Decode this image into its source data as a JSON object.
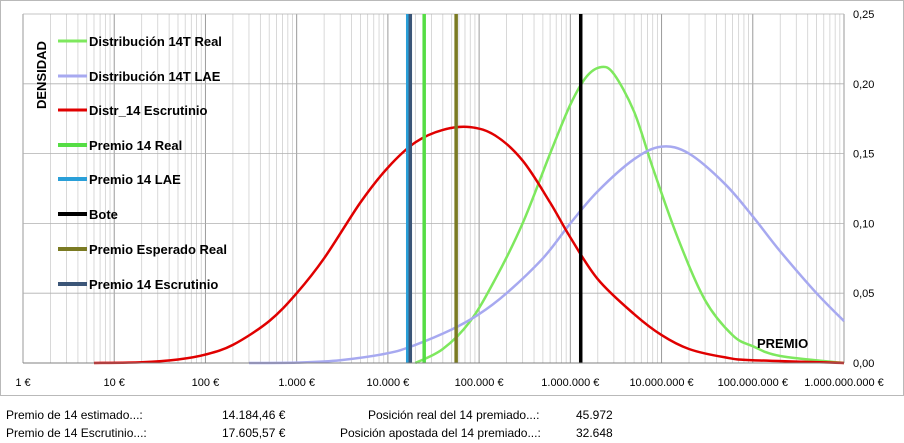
{
  "chart_data": {
    "type": "line",
    "xscale": "log",
    "xlim": [
      1,
      1000000000
    ],
    "ylim": [
      0,
      0.25
    ],
    "x_ticks": [
      "1 €",
      "10 €",
      "100 €",
      "1.000 €",
      "10.000 €",
      "100.000 €",
      "1.000.000 €",
      "10.000.000 €",
      "100.000.000 €",
      "1.000.000.000 €"
    ],
    "y_ticks": [
      "0,00",
      "0,05",
      "0,10",
      "0,15",
      "0,20",
      "0,25"
    ],
    "ylabel": "DENSIDAD",
    "xlabel": "PREMIO",
    "grid": true,
    "legend_position": "top-left",
    "series": [
      {
        "name": "Distribución 14T Real",
        "kind": "curve",
        "color": "#7ee85e",
        "x": [
          20000,
          40000,
          80000,
          150000,
          300000,
          600000,
          1000000,
          1500000,
          2200000,
          3000000,
          5000000,
          8000000,
          15000000,
          30000000,
          60000000,
          100000000,
          200000000,
          1000000000
        ],
        "y": [
          0.0,
          0.01,
          0.03,
          0.06,
          0.1,
          0.15,
          0.185,
          0.205,
          0.212,
          0.207,
          0.18,
          0.14,
          0.09,
          0.045,
          0.02,
          0.012,
          0.005,
          0.0
        ]
      },
      {
        "name": "Distribución 14T LAE",
        "kind": "curve",
        "color": "#a7a9f0",
        "x": [
          300,
          1000,
          3000,
          10000,
          20000,
          50000,
          100000,
          200000,
          500000,
          1000000,
          2000000,
          5000000,
          10000000,
          20000000,
          50000000,
          100000000,
          200000000,
          500000000,
          1000000000
        ],
        "y": [
          0.0,
          0.0003,
          0.002,
          0.007,
          0.013,
          0.024,
          0.035,
          0.05,
          0.075,
          0.1,
          0.123,
          0.146,
          0.155,
          0.15,
          0.128,
          0.105,
          0.08,
          0.05,
          0.03
        ]
      },
      {
        "name": "Distr_14 Escrutinio",
        "kind": "curve",
        "color": "#e00000",
        "x": [
          6,
          20,
          50,
          100,
          200,
          500,
          1000,
          2000,
          5000,
          10000,
          20000,
          40000,
          80000,
          150000,
          300000,
          600000,
          1000000,
          2000000,
          5000000,
          10000000,
          20000000,
          50000000,
          100000000,
          1000000000
        ],
        "y": [
          0.0,
          0.0005,
          0.0025,
          0.006,
          0.013,
          0.03,
          0.05,
          0.075,
          0.115,
          0.14,
          0.158,
          0.167,
          0.169,
          0.163,
          0.145,
          0.115,
          0.09,
          0.06,
          0.035,
          0.02,
          0.01,
          0.004,
          0.002,
          0.0
        ]
      },
      {
        "name": "Premio 14  Real",
        "kind": "vline",
        "color": "#55dd44",
        "x": 25000
      },
      {
        "name": "Premio 14 LAE",
        "kind": "vline",
        "color": "#2a9fd8",
        "x": 16500
      },
      {
        "name": "Bote",
        "kind": "vline",
        "color": "#000000",
        "x": 1300000
      },
      {
        "name": "Premio Esperado Real",
        "kind": "vline",
        "color": "#7a7a22",
        "x": 56000
      },
      {
        "name": "Premio 14 Escrutinio",
        "kind": "vline",
        "color": "#3b5577",
        "x": 17605.57
      }
    ]
  },
  "summary": {
    "premio_estimado_label": "Premio de 14 estimado...:",
    "premio_estimado_value": "14.184,46 €",
    "premio_escrutinio_label": "Premio de 14 Escrutinio...:",
    "premio_escrutinio_value": "17.605,57 €",
    "posicion_real_label": "Posición real del 14 premiado...:",
    "posicion_real_value": "45.972",
    "posicion_apostada_label": "Posición apostada del 14 premiado...:",
    "posicion_apostada_value": "32.648"
  }
}
